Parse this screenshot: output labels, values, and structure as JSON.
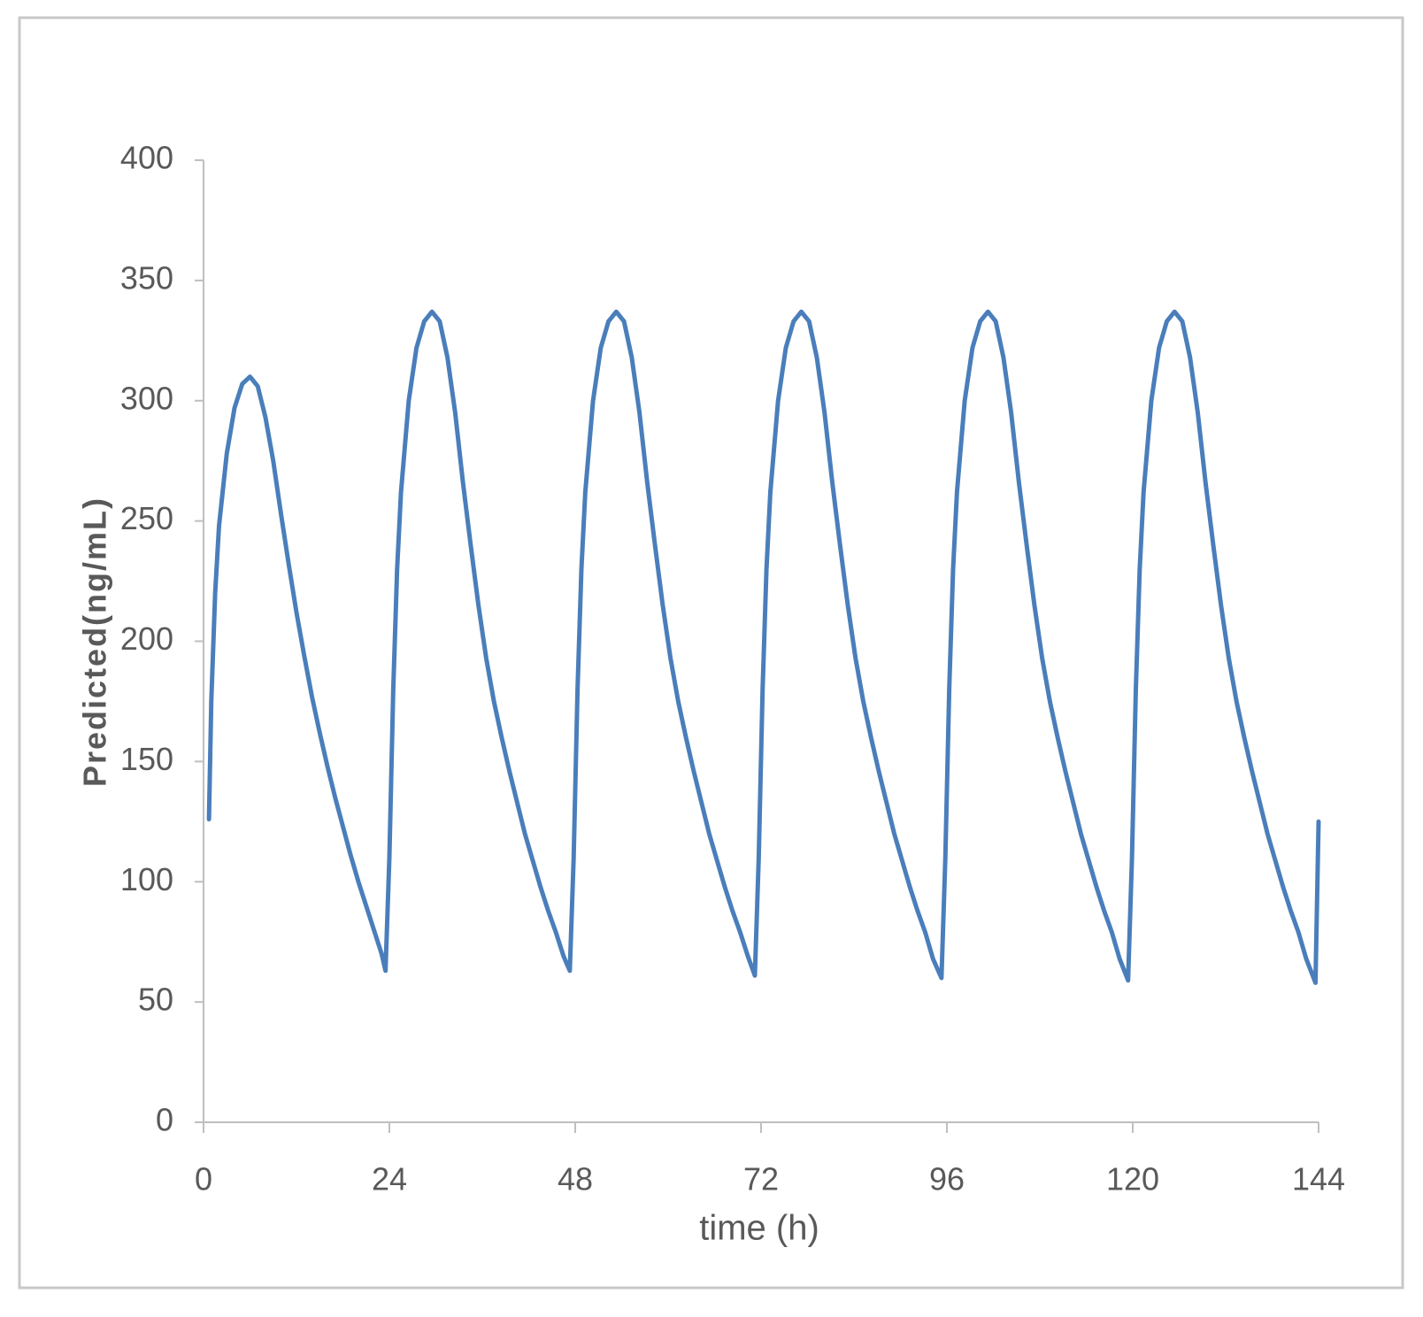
{
  "chart_data": {
    "type": "line",
    "x_label": "time (h)",
    "y_label": "Predicted(ng/mL)",
    "color": "#4a7ebb",
    "x": [
      0.7,
      1,
      1.5,
      2,
      3,
      4,
      5,
      6,
      7,
      8,
      9,
      10,
      11,
      12,
      13,
      14,
      15,
      16,
      17,
      18,
      19,
      20,
      21,
      22,
      23,
      23.5,
      24,
      24.5,
      25,
      25.5,
      26.5,
      27.5,
      28.5,
      29.5,
      30.5,
      31.5,
      32.5,
      33.5,
      34.5,
      35.5,
      36.5,
      37.5,
      38.5,
      39.5,
      40.5,
      41.5,
      42.5,
      43.5,
      44.5,
      45.5,
      46.5,
      47.3,
      47.8,
      48.3,
      48.8,
      49.3,
      50.3,
      51.3,
      52.3,
      53.3,
      54.3,
      55.3,
      56.3,
      57.3,
      58.3,
      59.3,
      60.3,
      61.3,
      62.3,
      63.3,
      64.3,
      65.3,
      66.3,
      67.3,
      68.3,
      69.3,
      70.3,
      71.2,
      71.7,
      72.2,
      72.7,
      73.2,
      74.2,
      75.2,
      76.2,
      77.2,
      78.2,
      79.2,
      80.2,
      81.2,
      82.2,
      83.2,
      84.2,
      85.2,
      86.2,
      87.2,
      88.2,
      89.2,
      90.2,
      91.2,
      92.2,
      93.2,
      94.2,
      95.3,
      95.8,
      96.3,
      96.8,
      97.3,
      98.3,
      99.3,
      100.3,
      101.3,
      102.3,
      103.3,
      104.3,
      105.3,
      106.3,
      107.3,
      108.3,
      109.3,
      110.3,
      111.3,
      112.3,
      113.3,
      114.3,
      115.3,
      116.3,
      117.3,
      118.3,
      119.4,
      119.9,
      120.4,
      120.9,
      121.4,
      122.4,
      123.4,
      124.4,
      125.4,
      126.4,
      127.4,
      128.4,
      129.4,
      130.4,
      131.4,
      132.4,
      133.4,
      134.4,
      135.4,
      136.4,
      137.4,
      138.4,
      139.4,
      140.4,
      141.4,
      142.4,
      143.6,
      144
    ],
    "values": [
      126,
      175,
      220,
      248,
      278,
      297,
      307,
      310,
      306,
      293,
      275,
      253,
      232,
      212,
      194,
      177,
      162,
      148,
      135,
      123,
      111,
      100,
      90,
      80,
      70,
      63,
      110,
      180,
      230,
      262,
      300,
      322,
      333,
      337,
      333,
      318,
      295,
      266,
      240,
      215,
      193,
      175,
      160,
      146,
      133,
      120,
      109,
      98,
      88,
      79,
      69,
      63,
      110,
      180,
      230,
      262,
      300,
      322,
      333,
      337,
      333,
      318,
      295,
      266,
      240,
      215,
      193,
      175,
      160,
      146,
      133,
      120,
      109,
      98,
      88,
      79,
      69,
      61,
      110,
      180,
      230,
      262,
      300,
      322,
      333,
      337,
      333,
      318,
      295,
      266,
      240,
      215,
      193,
      175,
      160,
      146,
      133,
      120,
      109,
      98,
      88,
      79,
      68,
      60,
      110,
      180,
      230,
      262,
      300,
      322,
      333,
      337,
      333,
      318,
      295,
      266,
      240,
      215,
      193,
      175,
      160,
      146,
      133,
      120,
      109,
      98,
      88,
      79,
      68,
      59,
      110,
      180,
      230,
      262,
      300,
      322,
      333,
      337,
      333,
      318,
      295,
      266,
      240,
      215,
      193,
      175,
      160,
      146,
      133,
      120,
      109,
      98,
      88,
      79,
      68,
      58,
      125
    ],
    "xlim": [
      0,
      144
    ],
    "xticks": [
      0,
      24,
      48,
      72,
      96,
      120,
      144
    ],
    "ylim": [
      0,
      400
    ],
    "yticks": [
      0,
      50,
      100,
      150,
      200,
      250,
      300,
      350,
      400
    ],
    "grid": false
  }
}
